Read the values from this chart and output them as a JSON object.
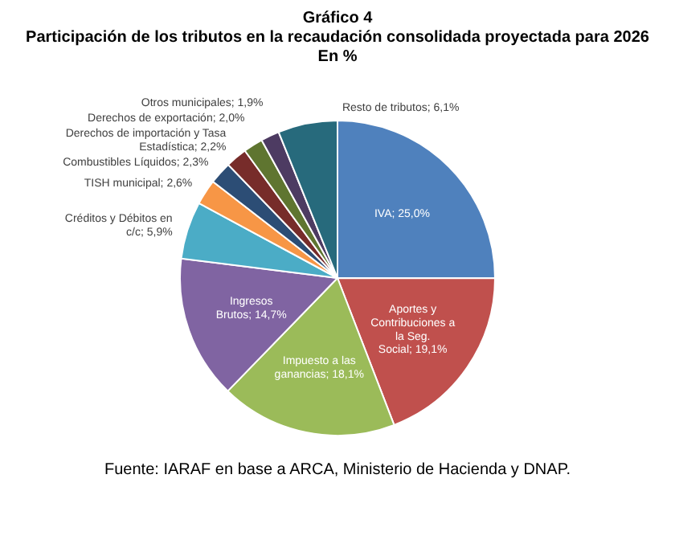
{
  "chart_data": {
    "type": "pie",
    "title": "Gráfico 4",
    "subtitle": "Participación de los tributos en la recaudación consolidada proyectada para 2026",
    "categories": [
      "IVA",
      "Aportes y Contribuciones a la Seg. Social",
      "Impuesto a las ganancias",
      "Ingresos Brutos",
      "Créditos y Débitos en c/c",
      "TISH municipal",
      "Combustibles Líquidos",
      "Derechos de importación y Tasa Estadística",
      "Derechos de exportación",
      "Otros municipales",
      "Resto de tributos"
    ],
    "values": [
      25.0,
      19.1,
      18.1,
      14.7,
      5.9,
      2.6,
      2.3,
      2.2,
      2.0,
      1.9,
      6.1
    ],
    "value_labels": [
      "25,0%",
      "19,1%",
      "18,1%",
      "14,7%",
      "5,9%",
      "2,6%",
      "2,3%",
      "2,2%",
      "2,0%",
      "1,9%",
      "6,1%"
    ],
    "colors": [
      "#4f81bd",
      "#c0504d",
      "#9bbb59",
      "#8064a2",
      "#4bacc6",
      "#f79646",
      "#2c4d75",
      "#772c2a",
      "#5f7530",
      "#4d3b62",
      "#276a7c"
    ],
    "annotations": [
      "En %",
      "Fuente: IARAF en base a ARCA, Ministerio de Hacienda y DNAP."
    ]
  }
}
